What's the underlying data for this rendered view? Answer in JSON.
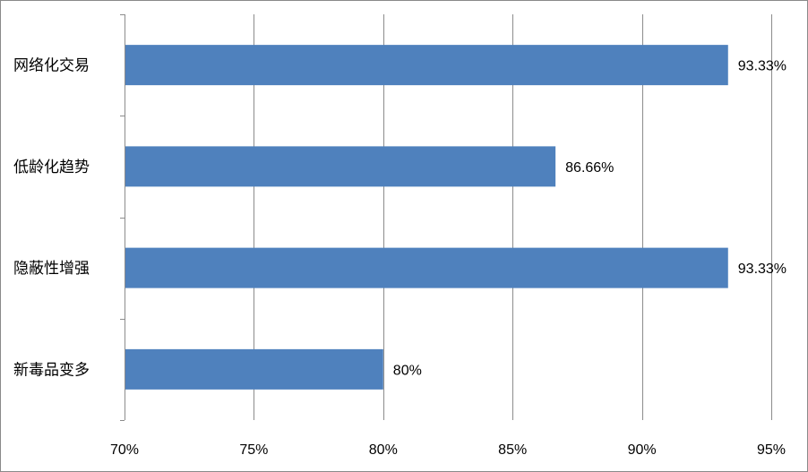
{
  "chart_data": {
    "type": "bar",
    "orientation": "horizontal",
    "categories": [
      "网络化交易",
      "低龄化趋势",
      "隐蔽性增强",
      "新毒品变多"
    ],
    "values": [
      93.33,
      86.66,
      93.33,
      80
    ],
    "data_labels": [
      "93.33%",
      "86.66%",
      "93.33%",
      "80%"
    ],
    "xlim": [
      70,
      95
    ],
    "x_ticks": [
      70,
      75,
      80,
      85,
      90,
      95
    ],
    "x_tick_labels": [
      "70%",
      "75%",
      "80%",
      "85%",
      "90%",
      "95%"
    ],
    "title": "",
    "xlabel": "",
    "ylabel": "",
    "grid": "vertical",
    "legend": "none",
    "bar_color": "#4F81BD"
  }
}
